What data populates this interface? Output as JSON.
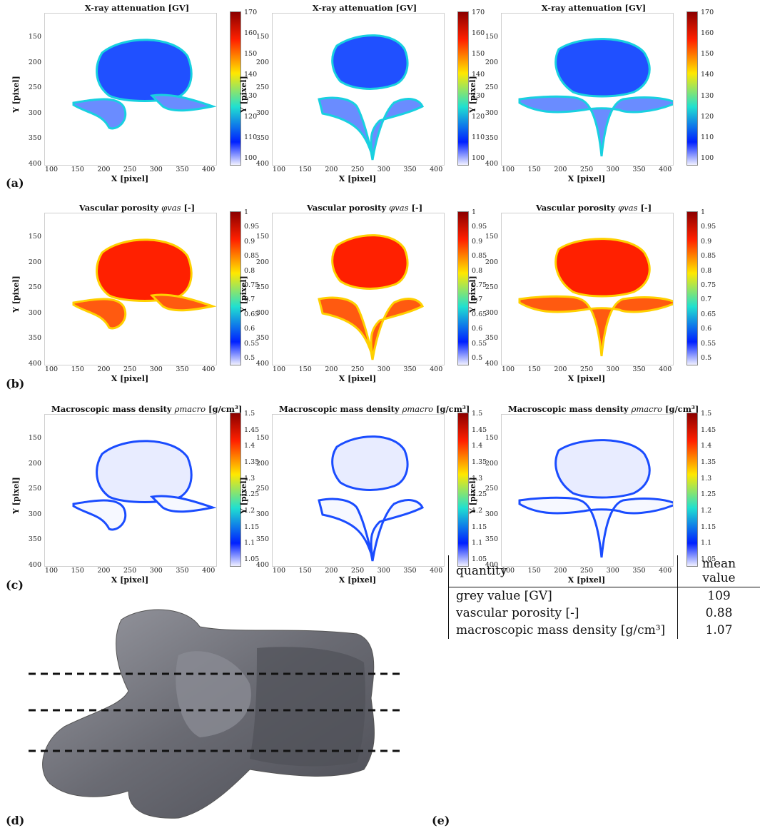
{
  "colors": {
    "cbar_top": "#8b0000",
    "cbar_red": "#ff2000",
    "cbar_yellow": "#ffe800",
    "cbar_cyan": "#20e0d0",
    "cbar_blue": "#0020ff",
    "cbar_bottom": "#f0f0ff",
    "vertebra_model": "#6f7078"
  },
  "rows": [
    {
      "label": "(a)",
      "title": "X-ray attenuation [GV]",
      "title_math": "",
      "title_unit": "",
      "cbar_ticks": [
        "170",
        "160",
        "150",
        "140",
        "130",
        "120",
        "110",
        "100"
      ],
      "fill": "blue"
    },
    {
      "label": "(b)",
      "title": "Vascular porosity ",
      "title_math": "φvas",
      "title_unit": " [-]",
      "cbar_ticks": [
        "1",
        "0.95",
        "0.9",
        "0.85",
        "0.8",
        "0.75",
        "0.7",
        "0.65",
        "0.6",
        "0.55",
        "0.5"
      ],
      "fill": "red"
    },
    {
      "label": "(c)",
      "title": "Macroscopic mass density ",
      "title_math": "ρmacro",
      "title_unit": " [g/cm³]",
      "cbar_ticks": [
        "1.5",
        "1.45",
        "1.4",
        "1.35",
        "1.3",
        "1.25",
        "1.2",
        "1.15",
        "1.1",
        "1.05"
      ],
      "fill": "white"
    }
  ],
  "axes": {
    "xlabel": "X [pixel]",
    "ylabel": "Y [pixel]",
    "xticks": [
      "100",
      "150",
      "200",
      "250",
      "300",
      "350",
      "400"
    ],
    "yticks": [
      "150",
      "200",
      "250",
      "300",
      "350",
      "400"
    ]
  },
  "bottom": {
    "d_label": "(d)",
    "e_label": "(e)"
  },
  "table": {
    "headers": [
      "quantity",
      "mean value"
    ],
    "rows": [
      [
        "grey value [GV]",
        "109"
      ],
      [
        "vascular porosity [-]",
        "0.88"
      ],
      [
        "macroscopic mass density [g/cm³]",
        "1.07"
      ]
    ]
  }
}
